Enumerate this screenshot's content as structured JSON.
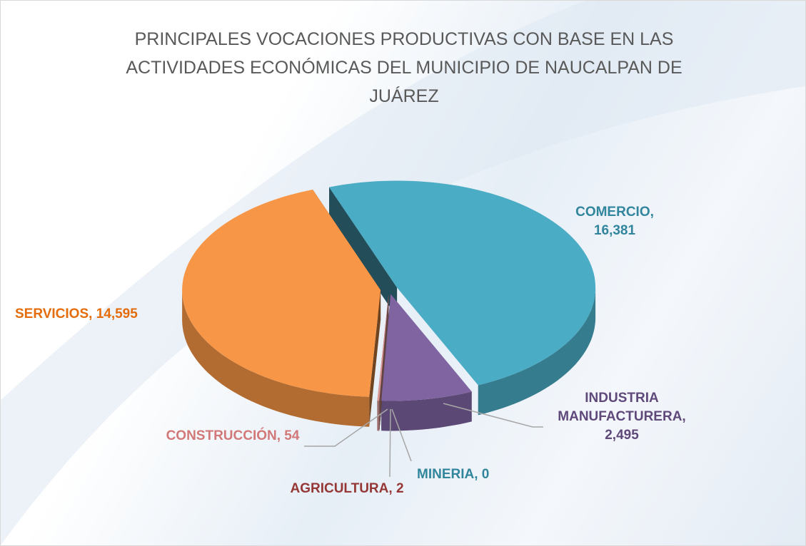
{
  "chart_data": {
    "type": "pie3d",
    "title": "PRINCIPALES VOCACIONES PRODUCTIVAS CON BASE EN LAS ACTIVIDADES ECONÓMICAS DEL MUNICIPIO DE NAUCALPAN DE JUÁREZ",
    "categories": [
      "COMERCIO",
      "INDUSTRIA MANUFACTURERA",
      "MINERIA",
      "AGRICULTURA",
      "CONSTRUCCIÓN",
      "SERVICIOS"
    ],
    "values": [
      16381,
      2495,
      0,
      2,
      54,
      14595
    ],
    "value_labels": [
      "16,381",
      "2,495",
      "0",
      "2",
      "54",
      "14,595"
    ],
    "label_separator": ", ",
    "colors": [
      "#4bacc6",
      "#8064a2",
      "#4bacc6",
      "#c0504d",
      "#d99694",
      "#f79646"
    ],
    "label_colors": [
      "#31859c",
      "#5f497a",
      "#31859c",
      "#953735",
      "#d27878",
      "#e46c0a"
    ]
  }
}
